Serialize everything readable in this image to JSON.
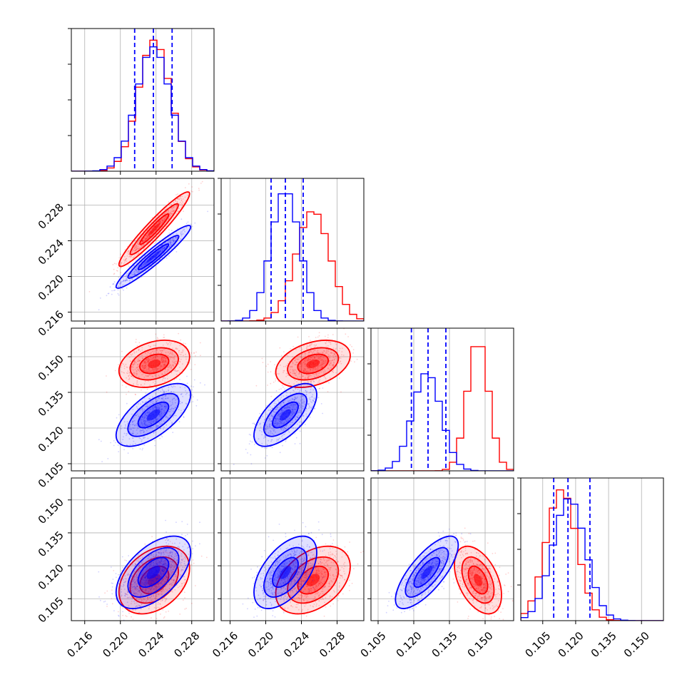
{
  "chart_data": {
    "type": "corner",
    "parameters": [
      {
        "ticks": [
          0.216,
          0.22,
          0.224,
          0.228
        ],
        "tick_labels": [
          "0.216",
          "0.220",
          "0.224",
          "0.228"
        ],
        "range": [
          0.2145,
          0.2305
        ]
      },
      {
        "ticks": [
          0.216,
          0.22,
          0.224,
          0.228
        ],
        "tick_labels": [
          "0.216",
          "0.220",
          "0.224",
          "0.228"
        ],
        "range": [
          0.215,
          0.231
        ]
      },
      {
        "ticks": [
          0.105,
          0.12,
          0.135,
          0.15
        ],
        "tick_labels": [
          "0.105",
          "0.120",
          "0.135",
          "0.150"
        ],
        "range": [
          0.102,
          0.162
        ]
      },
      {
        "ticks": [
          0.105,
          0.12,
          0.135,
          0.15
        ],
        "tick_labels": [
          "0.105",
          "0.120",
          "0.135",
          "0.150"
        ],
        "range": [
          0.095,
          0.16
        ]
      }
    ],
    "series": [
      {
        "color": "#ff0000",
        "mean": [
          0.2238,
          0.2253,
          0.147,
          0.1135
        ],
        "std": [
          0.0018,
          0.0019,
          0.0045,
          0.007
        ],
        "correlation": [
          [
            1,
            0.95,
            0.3,
            0.35
          ],
          [
            0.95,
            1,
            0.35,
            0.4
          ],
          [
            0.3,
            0.35,
            1,
            -0.45
          ],
          [
            0.35,
            0.4,
            -0.45,
            1
          ]
        ]
      },
      {
        "color": "#0000ff",
        "mean": [
          0.2237,
          0.2222,
          0.1255,
          0.117
        ],
        "std": [
          0.0019,
          0.0016,
          0.006,
          0.0075
        ],
        "correlation": [
          [
            1,
            0.95,
            0.65,
            0.55
          ],
          [
            0.95,
            1,
            0.65,
            0.55
          ],
          [
            0.65,
            0.65,
            1,
            0.75
          ],
          [
            0.55,
            0.55,
            0.75,
            1
          ]
        ],
        "quantiles": [
          [
            0.2216,
            0.2237,
            0.2258
          ],
          [
            0.2206,
            0.2222,
            0.2242
          ],
          [
            0.119,
            0.126,
            0.1335
          ],
          [
            0.11,
            0.1165,
            0.1265
          ]
        ]
      }
    ],
    "xlabel": "",
    "ylabel": "",
    "grid": true
  }
}
